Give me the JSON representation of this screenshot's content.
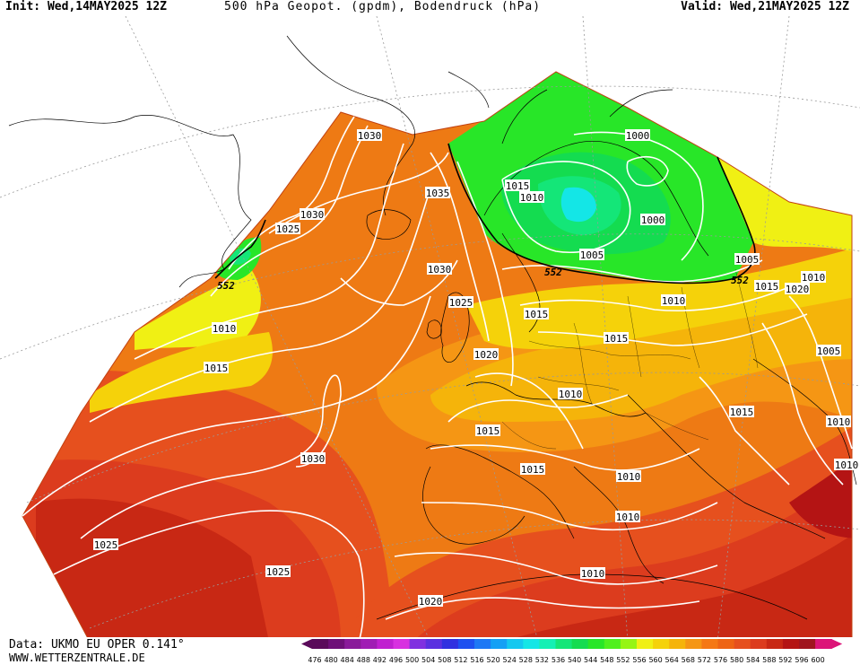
{
  "header": {
    "init": "Init: Wed,14MAY2025 12Z",
    "title": "500 hPa Geopot. (gpdm), Bodendruck (hPa)",
    "valid": "Valid: Wed,21MAY2025 12Z"
  },
  "footer": {
    "data": "Data: UKMO EU OPER 0.141°",
    "site": "WWW.WETTERZENTRALE.DE"
  },
  "legend": {
    "levels": [
      "476",
      "480",
      "484",
      "488",
      "492",
      "496",
      "500",
      "504",
      "508",
      "512",
      "516",
      "520",
      "524",
      "528",
      "532",
      "536",
      "540",
      "544",
      "548",
      "552",
      "556",
      "560",
      "564",
      "568",
      "572",
      "576",
      "580",
      "584",
      "588",
      "592",
      "596",
      "600"
    ],
    "colors": [
      "#5a0a5a",
      "#6e0f78",
      "#8a1a9a",
      "#a01db4",
      "#c020d0",
      "#d830e0",
      "#8030e0",
      "#5a30e0",
      "#3030e0",
      "#1e50f0",
      "#1e78f5",
      "#14a0f5",
      "#14c8f0",
      "#14e6e6",
      "#14f0b4",
      "#14e678",
      "#14dc50",
      "#28e628",
      "#50f01e",
      "#96f514",
      "#f0f014",
      "#f5d20a",
      "#f5b40a",
      "#f59614",
      "#f57814",
      "#ee6414",
      "#e6501e",
      "#dc3c1e",
      "#c82814",
      "#b41414",
      "#a0141e",
      "#dc1478"
    ]
  },
  "map": {
    "isobar_labels": [
      "1030",
      "1035",
      "1030",
      "1025",
      "1030",
      "1025",
      "1010",
      "1015",
      "1030",
      "1025",
      "1025",
      "1020",
      "1000",
      "1015",
      "1010",
      "1000",
      "1005",
      "1005",
      "1010",
      "1015",
      "1010",
      "1015",
      "1020",
      "1010",
      "1010",
      "1005",
      "1010",
      "1015",
      "1015",
      "1015",
      "1015",
      "1010",
      "1010",
      "1010",
      "1020"
    ],
    "geopot_labels": [
      "552",
      "552",
      "552"
    ]
  }
}
